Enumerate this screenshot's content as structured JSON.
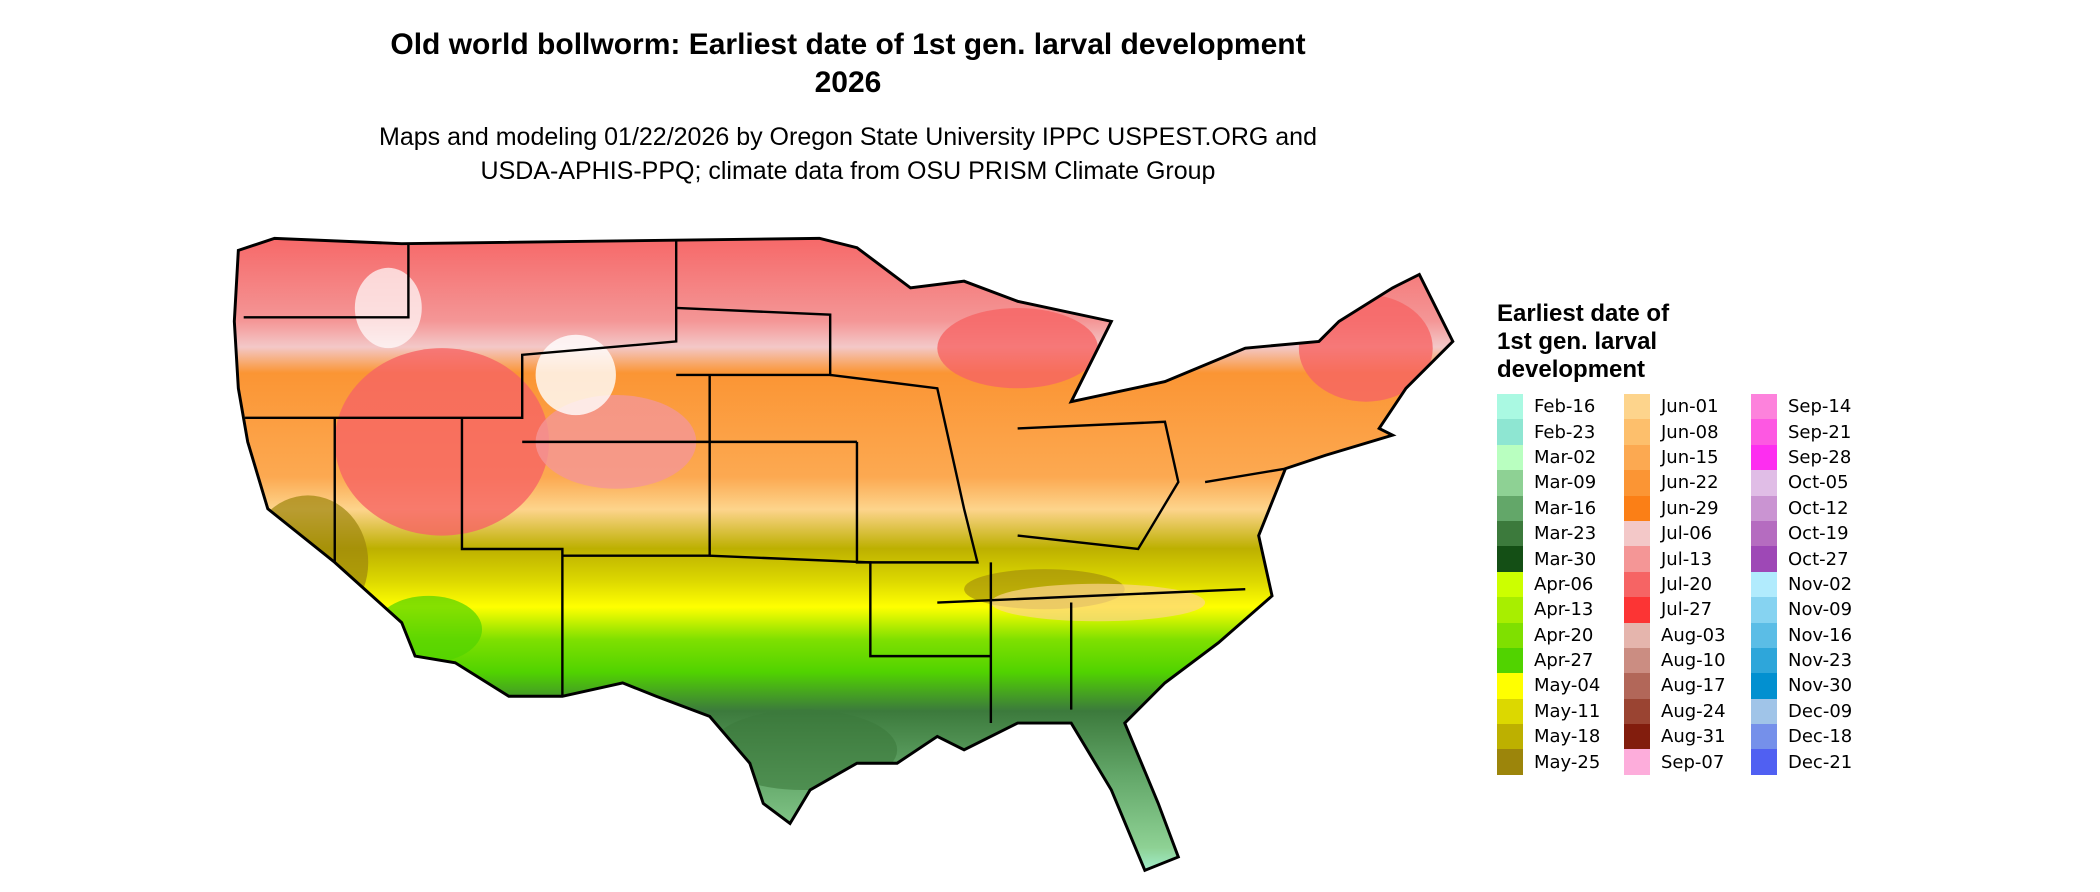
{
  "title": "Old world bollworm: Earliest date of 1st gen. larval development",
  "year": "2026",
  "subtitle_line1": "Maps and modeling 01/22/2026 by Oregon State University IPPC USPEST.ORG and",
  "subtitle_line2": "USDA-APHIS-PPQ; climate data from OSU PRISM Climate Group",
  "legend": {
    "title": "Earliest date of 1st gen. larval development",
    "columns": [
      [
        {
          "label": "Feb-16",
          "color": "#aaf9e2"
        },
        {
          "label": "Feb-23",
          "color": "#8ee6d2"
        },
        {
          "label": "Mar-02",
          "color": "#b9ffc0"
        },
        {
          "label": "Mar-09",
          "color": "#8ed194"
        },
        {
          "label": "Mar-16",
          "color": "#63a769"
        },
        {
          "label": "Mar-23",
          "color": "#3c7a3c"
        },
        {
          "label": "Mar-30",
          "color": "#144f15"
        },
        {
          "label": "Apr-06",
          "color": "#ccff00"
        },
        {
          "label": "Apr-13",
          "color": "#a8ee00"
        },
        {
          "label": "Apr-20",
          "color": "#7fe000"
        },
        {
          "label": "Apr-27",
          "color": "#51d300"
        },
        {
          "label": "May-04",
          "color": "#ffff00"
        },
        {
          "label": "May-11",
          "color": "#dcd800"
        },
        {
          "label": "May-18",
          "color": "#bdb000"
        },
        {
          "label": "May-25",
          "color": "#9c850b"
        }
      ],
      [
        {
          "label": "Jun-01",
          "color": "#fdd48c"
        },
        {
          "label": "Jun-08",
          "color": "#fdbf6c"
        },
        {
          "label": "Jun-15",
          "color": "#fca951"
        },
        {
          "label": "Jun-22",
          "color": "#fb9534"
        },
        {
          "label": "Jun-29",
          "color": "#fb7f16"
        },
        {
          "label": "Jul-06",
          "color": "#f3c8c8"
        },
        {
          "label": "Jul-13",
          "color": "#f49696"
        },
        {
          "label": "Jul-20",
          "color": "#f66464"
        },
        {
          "label": "Jul-27",
          "color": "#fc3434"
        },
        {
          "label": "Aug-03",
          "color": "#e5b5ad"
        },
        {
          "label": "Aug-10",
          "color": "#cb8d82"
        },
        {
          "label": "Aug-17",
          "color": "#b26759"
        },
        {
          "label": "Aug-24",
          "color": "#9a4432"
        },
        {
          "label": "Aug-31",
          "color": "#821d0d"
        },
        {
          "label": "Sep-07",
          "color": "#fdaddb"
        }
      ],
      [
        {
          "label": "Sep-14",
          "color": "#fd82dc"
        },
        {
          "label": "Sep-21",
          "color": "#fd58e2"
        },
        {
          "label": "Sep-28",
          "color": "#fd2ef0"
        },
        {
          "label": "Oct-05",
          "color": "#e0bde6"
        },
        {
          "label": "Oct-12",
          "color": "#ca94d2"
        },
        {
          "label": "Oct-19",
          "color": "#b56cc0"
        },
        {
          "label": "Oct-27",
          "color": "#9e48b6"
        },
        {
          "label": "Nov-02",
          "color": "#b1ebfd"
        },
        {
          "label": "Nov-09",
          "color": "#86d3f1"
        },
        {
          "label": "Nov-16",
          "color": "#5bbde6"
        },
        {
          "label": "Nov-23",
          "color": "#2ea6da"
        },
        {
          "label": "Nov-30",
          "color": "#0290d0"
        },
        {
          "label": "Dec-09",
          "color": "#a0c4e8"
        },
        {
          "label": "Dec-18",
          "color": "#7590ea"
        },
        {
          "label": "Dec-21",
          "color": "#5060f2"
        }
      ]
    ]
  }
}
